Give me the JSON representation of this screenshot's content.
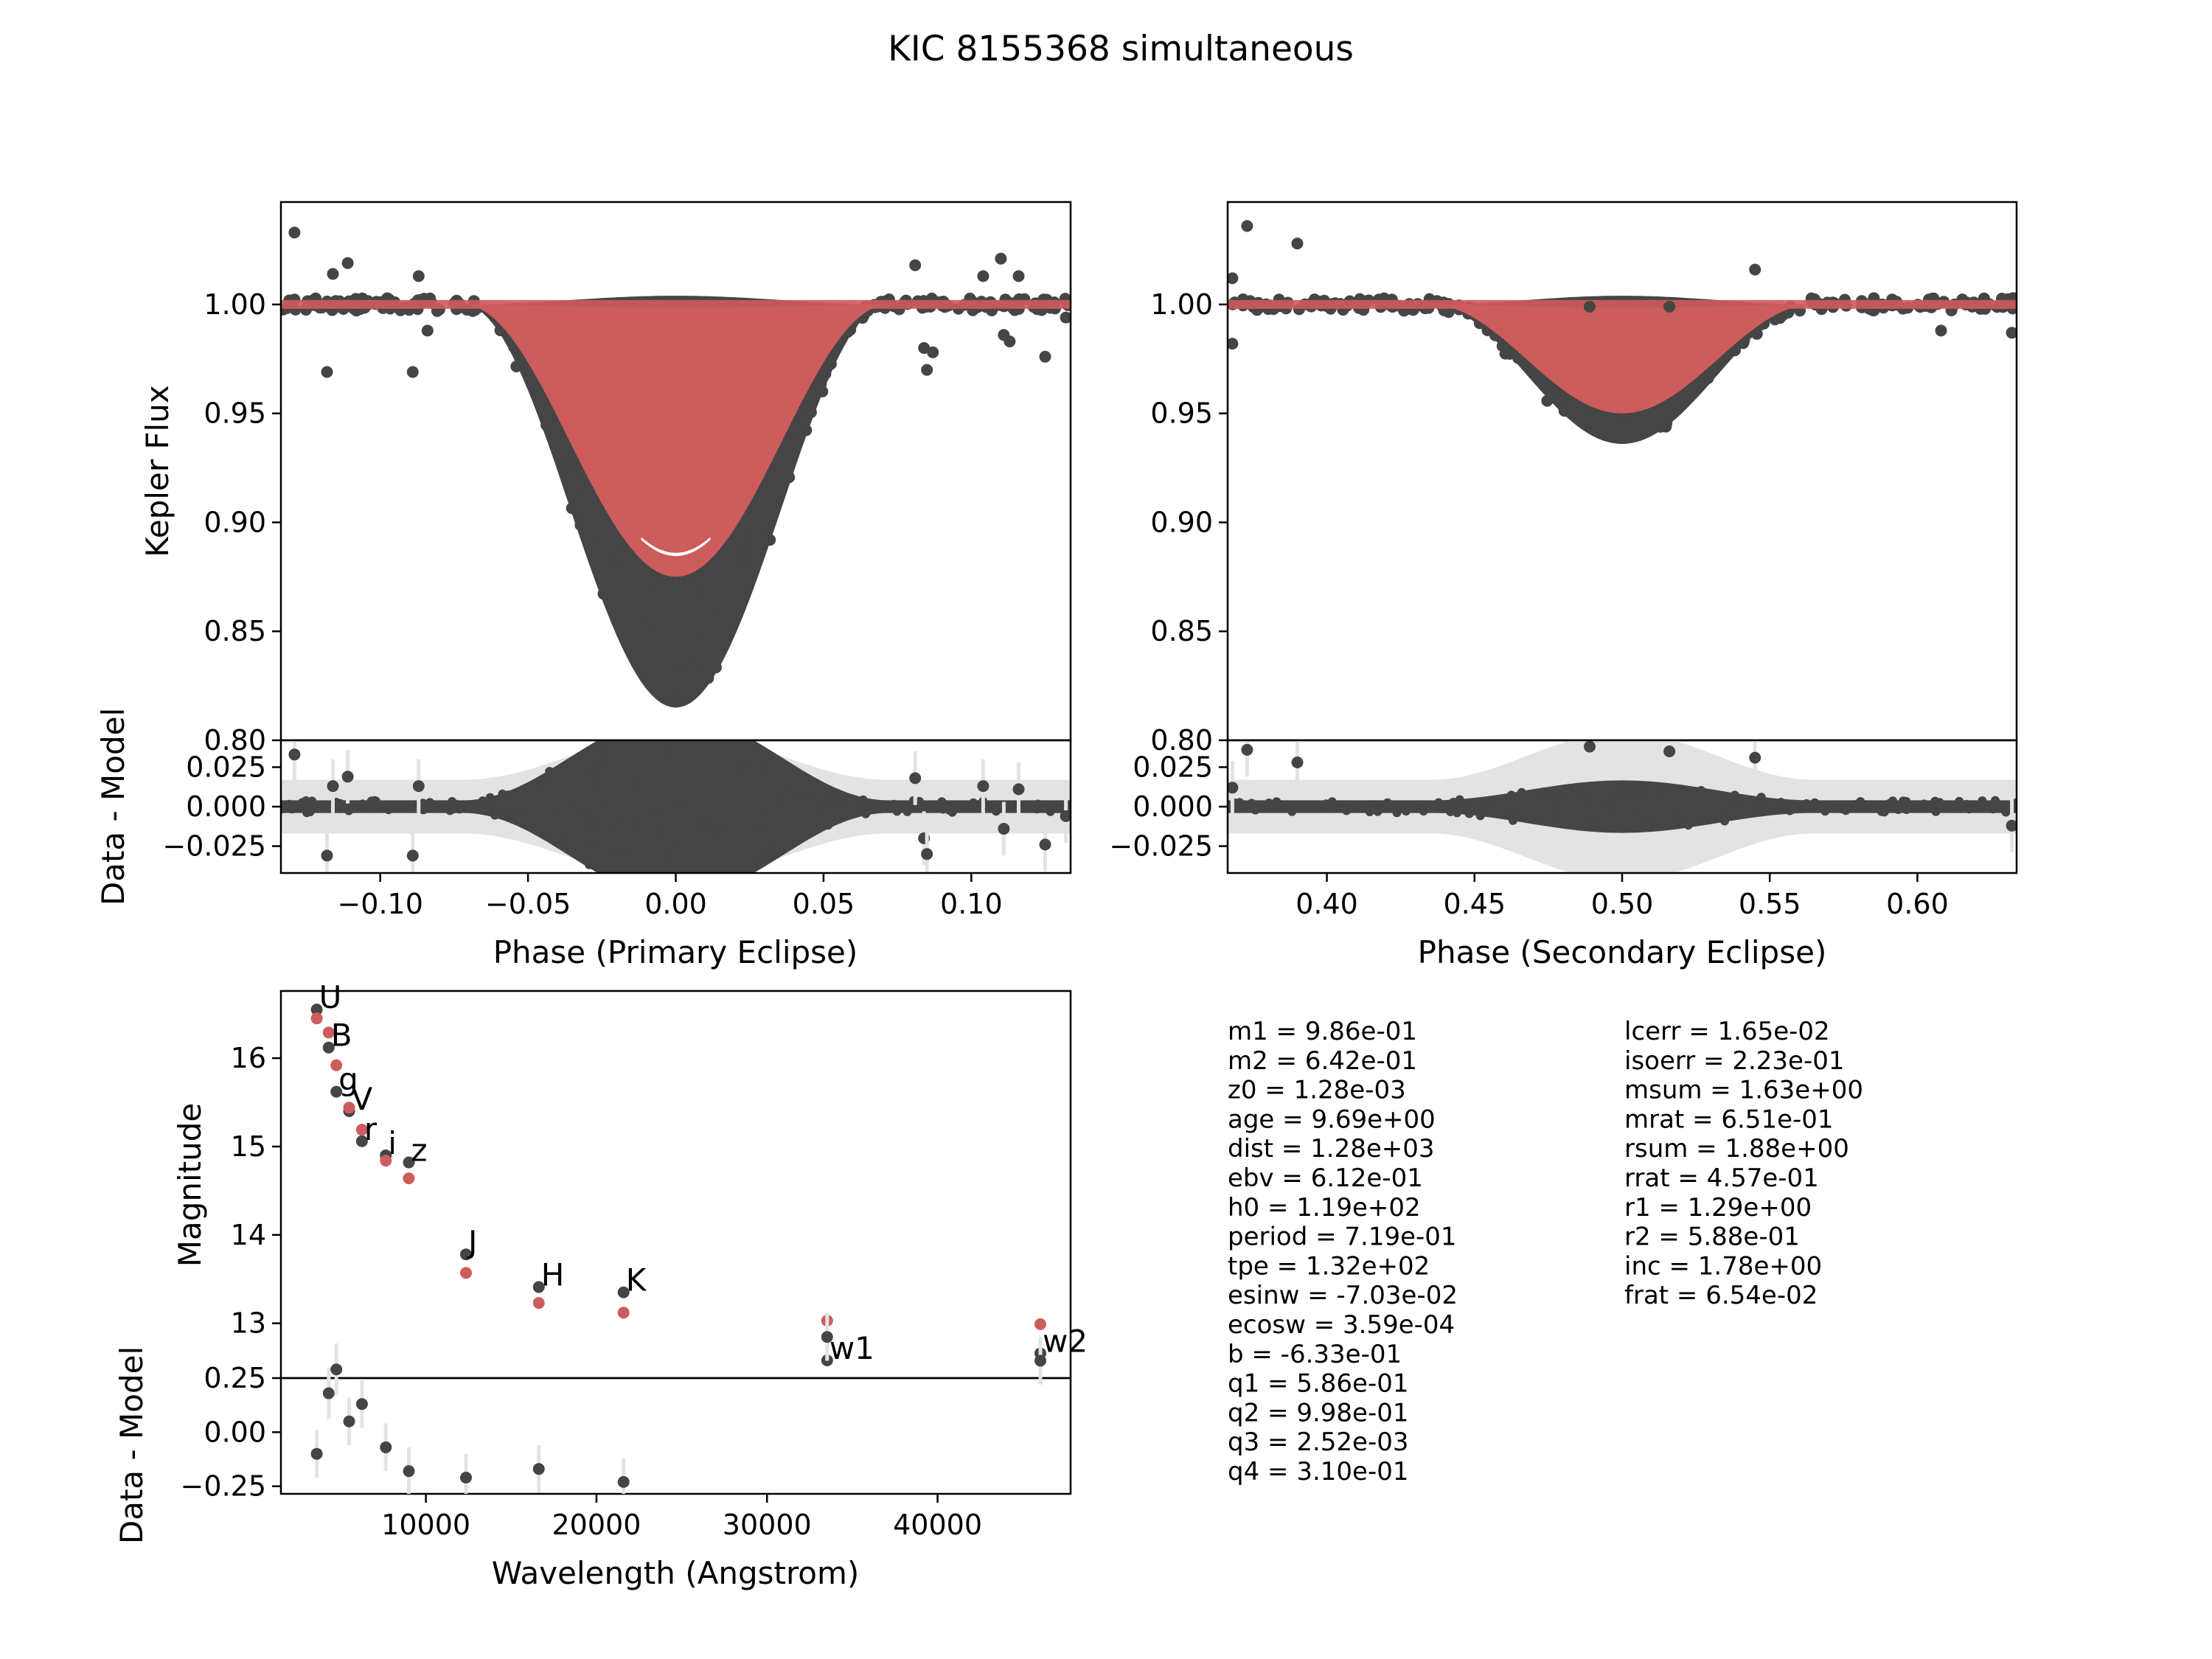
{
  "title": "KIC 8155368 simultaneous",
  "colors": {
    "data": "#454545",
    "model": "#cd5c5c",
    "error": "#e3e3e3",
    "axis": "#000000"
  },
  "chart_data": [
    {
      "id": "primary",
      "type": "scatter",
      "xlabel": "Phase (Primary Eclipse)",
      "ylabel": "Kepler Flux",
      "xlim": [
        -0.1336,
        0.1336
      ],
      "ylim": [
        0.8,
        1.047
      ],
      "xticks": [
        -0.1,
        -0.05,
        0.0,
        0.05,
        0.1
      ],
      "xtick_labels": [
        "−0.10",
        "−0.05",
        "0.00",
        "0.05",
        "0.10"
      ],
      "yticks": [
        0.8,
        0.85,
        0.9,
        0.95,
        1.0
      ],
      "ytick_labels": [
        "0.80",
        "0.85",
        "0.90",
        "0.95",
        "1.00"
      ],
      "eclipse": {
        "center": 0.0,
        "half_width": 0.072,
        "depth_min": 0.068,
        "depth_max": 0.185,
        "model_min": 0.092,
        "model_max": 0.125,
        "hole": 0.118
      },
      "outliers": [
        [
          -0.129,
          1.033
        ],
        [
          -0.118,
          0.969
        ],
        [
          -0.116,
          1.014
        ],
        [
          -0.111,
          1.019
        ],
        [
          -0.089,
          0.969
        ],
        [
          -0.087,
          1.013
        ],
        [
          -0.084,
          0.988
        ],
        [
          0.081,
          1.018
        ],
        [
          0.084,
          0.98
        ],
        [
          0.085,
          0.97
        ],
        [
          0.087,
          0.978
        ],
        [
          0.104,
          1.013
        ],
        [
          0.11,
          1.021
        ],
        [
          0.111,
          0.986
        ],
        [
          0.113,
          0.983
        ],
        [
          0.116,
          1.013
        ],
        [
          0.125,
          0.976
        ],
        [
          0.132,
          0.994
        ]
      ],
      "residual": {
        "ylabel": "Data - Model",
        "ylim": [
          -0.042,
          0.042
        ],
        "yticks": [
          -0.025,
          0.0,
          0.025
        ],
        "ytick_labels": [
          "−0.025",
          "0.000",
          "0.025"
        ],
        "outliers": [
          [
            -0.129,
            0.033
          ],
          [
            -0.118,
            -0.031
          ],
          [
            -0.116,
            0.013
          ],
          [
            -0.111,
            0.019
          ],
          [
            -0.089,
            -0.031
          ],
          [
            -0.087,
            0.013
          ],
          [
            0.081,
            0.018
          ],
          [
            0.084,
            -0.02
          ],
          [
            0.085,
            -0.03
          ],
          [
            0.104,
            0.013
          ],
          [
            0.111,
            -0.014
          ],
          [
            0.116,
            0.011
          ],
          [
            0.125,
            -0.024
          ],
          [
            0.132,
            -0.006
          ]
        ]
      }
    },
    {
      "id": "secondary",
      "type": "scatter",
      "xlabel": "Phase (Secondary Eclipse)",
      "ylabel": "",
      "xlim": [
        0.3664,
        0.6336
      ],
      "ylim": [
        0.8,
        1.047
      ],
      "xticks": [
        0.4,
        0.45,
        0.5,
        0.55,
        0.6
      ],
      "xtick_labels": [
        "0.40",
        "0.45",
        "0.50",
        "0.55",
        "0.60"
      ],
      "yticks": [
        0.8,
        0.85,
        0.9,
        0.95,
        1.0
      ],
      "ytick_labels": [
        "0.80",
        "0.85",
        "0.90",
        "0.95",
        "1.00"
      ],
      "eclipse": {
        "center": 0.5,
        "half_width": 0.065,
        "depth_min": 0.025,
        "depth_max": 0.064,
        "model_min": 0.034,
        "model_max": 0.05,
        "hole": 0
      },
      "outliers": [
        [
          0.368,
          1.012
        ],
        [
          0.368,
          0.982
        ],
        [
          0.373,
          1.036
        ],
        [
          0.39,
          1.028
        ],
        [
          0.489,
          0.999
        ],
        [
          0.516,
          0.999
        ],
        [
          0.545,
          1.016
        ],
        [
          0.608,
          0.988
        ],
        [
          0.632,
          0.987
        ]
      ],
      "residual": {
        "ylabel": "",
        "ylim": [
          -0.042,
          0.042
        ],
        "yticks": [
          -0.025,
          0.0,
          0.025
        ],
        "ytick_labels": [
          "−0.025",
          "0.000",
          "0.025"
        ],
        "outliers": [
          [
            0.368,
            0.012
          ],
          [
            0.373,
            0.036
          ],
          [
            0.39,
            0.028
          ],
          [
            0.489,
            0.038
          ],
          [
            0.516,
            0.035
          ],
          [
            0.545,
            0.031
          ],
          [
            0.632,
            -0.012
          ]
        ]
      }
    },
    {
      "id": "sed",
      "type": "scatter",
      "xlabel": "Wavelength (Angstrom)",
      "ylabel": "Magnitude",
      "xlim": [
        1500,
        47800
      ],
      "ylim": [
        12.38,
        16.76
      ],
      "xticks": [
        10000,
        20000,
        30000,
        40000
      ],
      "xtick_labels": [
        "10000",
        "20000",
        "30000",
        "40000"
      ],
      "yticks": [
        13,
        14,
        15,
        16
      ],
      "ytick_labels": [
        "13",
        "14",
        "15",
        "16"
      ],
      "bands": [
        {
          "name": "U",
          "wl": 3600,
          "data": 16.55,
          "model": 16.45,
          "resid": -0.1,
          "err": 0.11
        },
        {
          "name": "B",
          "wl": 4300,
          "data": 16.12,
          "model": 16.29,
          "resid": 0.18,
          "err": 0.12
        },
        {
          "name": "g",
          "wl": 4750,
          "data": 15.62,
          "model": 15.92,
          "resid": 0.29,
          "err": 0.12
        },
        {
          "name": "V",
          "wl": 5500,
          "data": 15.4,
          "model": 15.44,
          "resid": 0.05,
          "err": 0.11
        },
        {
          "name": "r",
          "wl": 6250,
          "data": 15.06,
          "model": 15.19,
          "resid": 0.13,
          "err": 0.11
        },
        {
          "name": "i",
          "wl": 7650,
          "data": 14.9,
          "model": 14.84,
          "resid": -0.07,
          "err": 0.11
        },
        {
          "name": "z",
          "wl": 9000,
          "data": 14.82,
          "model": 14.64,
          "resid": -0.18,
          "err": 0.11
        },
        {
          "name": "J",
          "wl": 12350,
          "data": 13.78,
          "model": 13.57,
          "resid": -0.21,
          "err": 0.11
        },
        {
          "name": "H",
          "wl": 16620,
          "data": 13.41,
          "model": 13.23,
          "resid": -0.17,
          "err": 0.11
        },
        {
          "name": "K",
          "wl": 21590,
          "data": 13.35,
          "model": 13.12,
          "resid": -0.23,
          "err": 0.11
        },
        {
          "name": "w1",
          "wl": 33526,
          "data": 12.58,
          "model": 13.03,
          "resid": 0.44,
          "err": 0.11
        },
        {
          "name": "w2",
          "wl": 46028,
          "data": 12.66,
          "model": 12.99,
          "resid": 0.33,
          "err": 0.11
        }
      ],
      "residual": {
        "ylabel": "Data - Model",
        "ylim": [
          -0.285,
          0.25
        ],
        "yticks": [
          -0.25,
          0.0,
          0.25
        ],
        "ytick_labels": [
          "−0.25",
          "0.00",
          "0.25"
        ]
      }
    }
  ],
  "parameters": {
    "col1": [
      "m1 = 9.86e-01",
      "m2 = 6.42e-01",
      "z0 = 1.28e-03",
      "age = 9.69e+00",
      "dist = 1.28e+03",
      "ebv = 6.12e-01",
      "h0 = 1.19e+02",
      "period = 7.19e-01",
      "tpe = 1.32e+02",
      "esinw = -7.03e-02",
      "ecosw = 3.59e-04",
      "b = -6.33e-01",
      "q1 = 5.86e-01",
      "q2 = 9.98e-01",
      "q3 = 2.52e-03",
      "q4 = 3.10e-01"
    ],
    "col2": [
      "lcerr = 1.65e-02",
      "isoerr = 2.23e-01",
      "msum = 1.63e+00",
      "mrat = 6.51e-01",
      "rsum = 1.88e+00",
      "rrat = 4.57e-01",
      "r1 = 1.29e+00",
      "r2 = 5.88e-01",
      "inc = 1.78e+00",
      "frat = 6.54e-02"
    ]
  }
}
